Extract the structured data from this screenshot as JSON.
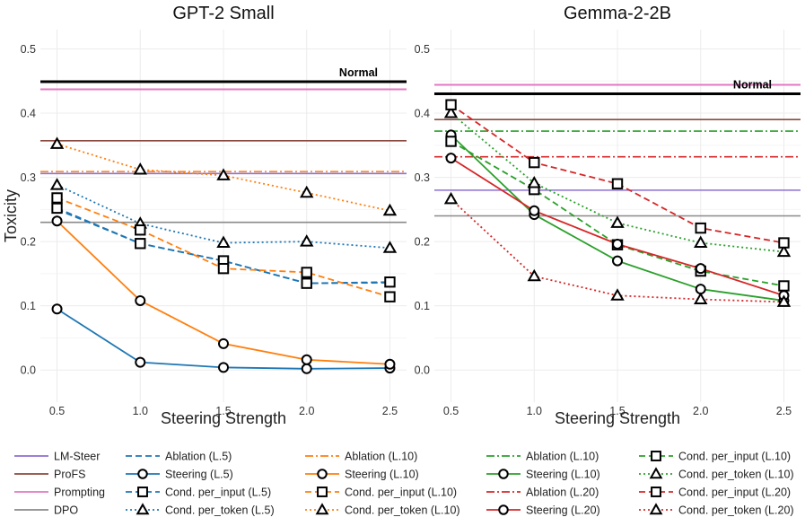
{
  "colors": {
    "lmsteer": "#8c6fd1",
    "profs": "#8b4a3f",
    "prompting": "#e377c2",
    "dpo": "#8a8a8a",
    "normal": "#000000",
    "blue": "#1f77b4",
    "orange": "#ff7f0e",
    "green": "#2ca02c",
    "red": "#d62728"
  },
  "chart_data": [
    {
      "type": "line",
      "title": "GPT-2 Small",
      "xlabel": "Steering Strength",
      "ylabel": "Toxicity",
      "xlim": [
        0.4,
        2.6
      ],
      "ylim": [
        -0.05,
        0.53
      ],
      "xticks": [
        0.5,
        1.0,
        1.5,
        2.0,
        2.5
      ],
      "xtick_labels": [
        "0.5",
        "1.0",
        "1.5",
        "2.0",
        "2.5"
      ],
      "yticks": [
        0.0,
        0.1,
        0.2,
        0.3,
        0.4,
        0.5
      ],
      "ytick_labels": [
        "0.0",
        "0.1",
        "0.2",
        "0.3",
        "0.4",
        "0.5"
      ],
      "reference_lines": [
        {
          "name": "Normal",
          "value": 0.449,
          "color": "normal",
          "dash": "solid",
          "width": 3,
          "label": "Normal"
        },
        {
          "name": "Prompting",
          "value": 0.437,
          "color": "prompting",
          "dash": "solid",
          "width": 2
        },
        {
          "name": "ProFS",
          "value": 0.357,
          "color": "profs",
          "dash": "solid",
          "width": 1.6
        },
        {
          "name": "Ablation (L.10)",
          "value": 0.309,
          "color": "orange",
          "dash": "dashdot",
          "width": 1.6
        },
        {
          "name": "LM-Steer",
          "value": 0.306,
          "color": "lmsteer",
          "dash": "solid",
          "width": 1.6
        },
        {
          "name": "DPO",
          "value": 0.23,
          "color": "dpo",
          "dash": "solid",
          "width": 1.6
        }
      ],
      "series": [
        {
          "name": "Ablation (L.5)",
          "color": "blue",
          "dash": "dash",
          "marker": "none",
          "x": [
            0.5,
            1.0,
            1.5,
            2.0,
            2.5
          ],
          "y": [
            0.25,
            0.197,
            0.17,
            0.135,
            0.136
          ]
        },
        {
          "name": "Steering (L.5)",
          "color": "blue",
          "dash": "solid",
          "marker": "circle",
          "x": [
            0.5,
            1.0,
            1.5,
            2.0,
            2.5
          ],
          "y": [
            0.095,
            0.012,
            0.004,
            0.002,
            0.003
          ]
        },
        {
          "name": "Cond. per_input (L.5)",
          "color": "blue",
          "dash": "dash",
          "marker": "square",
          "x": [
            0.5,
            1.0,
            1.5,
            2.0,
            2.5
          ],
          "y": [
            0.252,
            0.197,
            0.17,
            0.135,
            0.137
          ]
        },
        {
          "name": "Cond. per_token (L.5)",
          "color": "blue",
          "dash": "dot",
          "marker": "triangle",
          "x": [
            0.5,
            1.0,
            1.5,
            2.0,
            2.5
          ],
          "y": [
            0.288,
            0.228,
            0.198,
            0.2,
            0.19
          ]
        },
        {
          "name": "Steering (L.10)",
          "color": "orange",
          "dash": "solid",
          "marker": "circle",
          "x": [
            0.5,
            1.0,
            1.5,
            2.0,
            2.5
          ],
          "y": [
            0.232,
            0.108,
            0.041,
            0.016,
            0.009
          ]
        },
        {
          "name": "Cond. per_input (L.10)",
          "color": "orange",
          "dash": "dash",
          "marker": "square",
          "x": [
            0.5,
            1.0,
            1.5,
            2.0,
            2.5
          ],
          "y": [
            0.268,
            0.218,
            0.158,
            0.152,
            0.114
          ]
        },
        {
          "name": "Cond. per_token (L.10)",
          "color": "orange",
          "dash": "dot",
          "marker": "triangle",
          "x": [
            0.5,
            1.0,
            1.5,
            2.0,
            2.5
          ],
          "y": [
            0.352,
            0.312,
            0.303,
            0.276,
            0.248
          ]
        }
      ]
    },
    {
      "type": "line",
      "title": "Gemma-2-2B",
      "xlabel": "Steering Strength",
      "ylabel": "",
      "xlim": [
        0.4,
        2.6
      ],
      "ylim": [
        -0.05,
        0.53
      ],
      "xticks": [
        0.5,
        1.0,
        1.5,
        2.0,
        2.5
      ],
      "xtick_labels": [
        "0.5",
        "1.0",
        "1.5",
        "2.0",
        "2.5"
      ],
      "yticks": [
        0.0,
        0.1,
        0.2,
        0.3,
        0.4,
        0.5
      ],
      "ytick_labels": [
        "0.0",
        "0.1",
        "0.2",
        "0.3",
        "0.4",
        "0.5"
      ],
      "reference_lines": [
        {
          "name": "Prompting",
          "value": 0.444,
          "color": "prompting",
          "dash": "solid",
          "width": 2
        },
        {
          "name": "Normal",
          "value": 0.43,
          "color": "normal",
          "dash": "solid",
          "width": 3,
          "label": "Normal"
        },
        {
          "name": "ProFS",
          "value": 0.39,
          "color": "profs",
          "dash": "solid",
          "width": 1.6
        },
        {
          "name": "Ablation (L.10)",
          "value": 0.372,
          "color": "green",
          "dash": "dashdot",
          "width": 1.6
        },
        {
          "name": "Ablation (L.20)",
          "value": 0.332,
          "color": "red",
          "dash": "dashdot",
          "width": 1.6
        },
        {
          "name": "LM-Steer",
          "value": 0.28,
          "color": "lmsteer",
          "dash": "solid",
          "width": 1.6
        },
        {
          "name": "DPO",
          "value": 0.24,
          "color": "dpo",
          "dash": "solid",
          "width": 1.6
        }
      ],
      "series": [
        {
          "name": "Steering (L.10)",
          "color": "green",
          "dash": "solid",
          "marker": "circle",
          "x": [
            0.5,
            1.0,
            1.5,
            2.0,
            2.5
          ],
          "y": [
            0.366,
            0.242,
            0.17,
            0.126,
            0.108
          ]
        },
        {
          "name": "Cond. per_input (L.10)",
          "color": "green",
          "dash": "dash",
          "marker": "square",
          "x": [
            0.5,
            1.0,
            1.5,
            2.0,
            2.5
          ],
          "y": [
            0.356,
            0.281,
            0.195,
            0.154,
            0.131
          ]
        },
        {
          "name": "Cond. per_token (L.10)",
          "color": "green",
          "dash": "dot",
          "marker": "triangle",
          "x": [
            0.5,
            1.0,
            1.5,
            2.0,
            2.5
          ],
          "y": [
            0.4,
            0.291,
            0.229,
            0.198,
            0.184
          ]
        },
        {
          "name": "Steering (L.20)",
          "color": "red",
          "dash": "solid",
          "marker": "circle",
          "x": [
            0.5,
            1.0,
            1.5,
            2.0,
            2.5
          ],
          "y": [
            0.33,
            0.248,
            0.196,
            0.158,
            0.116
          ]
        },
        {
          "name": "Cond. per_input (L.20)",
          "color": "red",
          "dash": "dash",
          "marker": "square",
          "x": [
            0.5,
            1.0,
            1.5,
            2.0,
            2.5
          ],
          "y": [
            0.413,
            0.323,
            0.29,
            0.221,
            0.198
          ]
        },
        {
          "name": "Cond. per_token (L.20)",
          "color": "red",
          "dash": "dot",
          "marker": "triangle",
          "x": [
            0.5,
            1.0,
            1.5,
            2.0,
            2.5
          ],
          "y": [
            0.266,
            0.146,
            0.116,
            0.11,
            0.106
          ]
        }
      ]
    }
  ],
  "legend": {
    "placement": "bottom",
    "columns": [
      [
        {
          "label": "LM-Steer",
          "color": "lmsteer",
          "dash": "solid",
          "marker": "none"
        },
        {
          "label": "ProFS",
          "color": "profs",
          "dash": "solid",
          "marker": "none"
        },
        {
          "label": "Prompting",
          "color": "prompting",
          "dash": "solid",
          "marker": "none"
        },
        {
          "label": "DPO",
          "color": "dpo",
          "dash": "solid",
          "marker": "none"
        }
      ],
      [
        {
          "label": "Ablation (L.5)",
          "color": "blue",
          "dash": "dash",
          "marker": "none"
        },
        {
          "label": "Steering (L.5)",
          "color": "blue",
          "dash": "solid",
          "marker": "circle"
        },
        {
          "label": "Cond. per_input (L.5)",
          "color": "blue",
          "dash": "dash",
          "marker": "square"
        },
        {
          "label": "Cond. per_token (L.5)",
          "color": "blue",
          "dash": "dot",
          "marker": "triangle"
        }
      ],
      [
        {
          "label": "Ablation (L.10)",
          "color": "orange",
          "dash": "dashdot",
          "marker": "none"
        },
        {
          "label": "Steering (L.10)",
          "color": "orange",
          "dash": "solid",
          "marker": "circle"
        },
        {
          "label": "Cond. per_input (L.10)",
          "color": "orange",
          "dash": "dash",
          "marker": "square"
        },
        {
          "label": "Cond. per_token (L.10)",
          "color": "orange",
          "dash": "dot",
          "marker": "triangle"
        }
      ],
      [
        {
          "label": "Ablation (L.10)",
          "color": "green",
          "dash": "dashdot",
          "marker": "none"
        },
        {
          "label": "Steering (L.10)",
          "color": "green",
          "dash": "solid",
          "marker": "circle"
        },
        {
          "label": "Ablation (L.20)",
          "color": "red",
          "dash": "dashdot",
          "marker": "none"
        },
        {
          "label": "Steering (L.20)",
          "color": "red",
          "dash": "solid",
          "marker": "circle"
        }
      ],
      [
        {
          "label": "Cond. per_input (L.10)",
          "color": "green",
          "dash": "dash",
          "marker": "square"
        },
        {
          "label": "Cond. per_token (L.10)",
          "color": "green",
          "dash": "dot",
          "marker": "triangle"
        },
        {
          "label": "Cond. per_input (L.20)",
          "color": "red",
          "dash": "dash",
          "marker": "square"
        },
        {
          "label": "Cond. per_token (L.20)",
          "color": "red",
          "dash": "dot",
          "marker": "triangle"
        }
      ]
    ]
  }
}
